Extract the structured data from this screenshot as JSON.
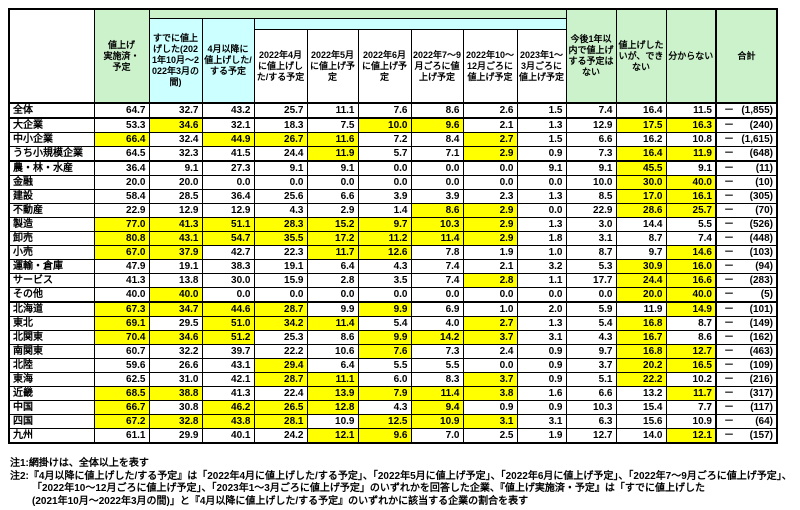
{
  "colors": {
    "green": "#CCF2CC",
    "cyan": "#CCFFFF",
    "yellow": "#FFFF00",
    "grid": "#000000"
  },
  "table": {
    "total_dash": "－",
    "col_headers": [
      {
        "label": "値上げ\n実施済・予定"
      },
      {
        "label": "すでに値上げした(2021年10月～2022年3月の間)"
      },
      {
        "label": "4月以降に値上げした/する予定"
      },
      {
        "label": "2022年4月に値上げした/する予定"
      },
      {
        "label": "2022年5月に値上げ予定"
      },
      {
        "label": "2022年6月に値上げ予定"
      },
      {
        "label": "2022年7～9月ごろに値上げ予定"
      },
      {
        "label": "2022年10～12月ごろに値上げ予定"
      },
      {
        "label": "2023年1～3月ごろに値上げ予定"
      },
      {
        "label": "今後1年以内で値上げする予定はない"
      },
      {
        "label": "値上げしたいが、できない"
      },
      {
        "label": "分からない"
      },
      {
        "label": "合計"
      }
    ],
    "rows": [
      {
        "label": "全体",
        "values": [
          "64.7",
          "32.7",
          "43.2",
          "25.7",
          "11.1",
          "7.6",
          "8.6",
          "2.6",
          "1.5",
          "7.4",
          "16.4",
          "11.5"
        ],
        "highlight": [],
        "total": "(1,855)"
      },
      {
        "label": "大企業",
        "values": [
          "53.3",
          "34.6",
          "32.1",
          "18.3",
          "7.5",
          "10.0",
          "9.6",
          "2.1",
          "1.3",
          "12.9",
          "17.5",
          "16.3"
        ],
        "highlight": [
          1,
          5,
          6,
          10,
          11
        ],
        "total": "(240)",
        "group_start": true
      },
      {
        "label": "中小企業",
        "values": [
          "66.4",
          "32.4",
          "44.9",
          "26.7",
          "11.6",
          "7.2",
          "8.4",
          "2.7",
          "1.5",
          "6.6",
          "16.2",
          "10.8"
        ],
        "highlight": [
          0,
          2,
          3,
          4,
          7
        ],
        "total": "(1,615)"
      },
      {
        "label": "うち小規模企業",
        "values": [
          "64.5",
          "32.3",
          "41.5",
          "24.4",
          "11.9",
          "5.7",
          "7.1",
          "2.9",
          "0.9",
          "7.3",
          "16.4",
          "11.9"
        ],
        "highlight": [
          4,
          7,
          10,
          11
        ],
        "total": "(648)"
      },
      {
        "label": "農・林・水産",
        "values": [
          "36.4",
          "9.1",
          "27.3",
          "9.1",
          "9.1",
          "0.0",
          "0.0",
          "0.0",
          "9.1",
          "9.1",
          "45.5",
          "9.1"
        ],
        "highlight": [
          10
        ],
        "total": "(11)",
        "group_start": true
      },
      {
        "label": "金融",
        "values": [
          "20.0",
          "20.0",
          "0.0",
          "0.0",
          "0.0",
          "0.0",
          "0.0",
          "0.0",
          "0.0",
          "10.0",
          "30.0",
          "40.0"
        ],
        "highlight": [
          10,
          11
        ],
        "total": "(10)"
      },
      {
        "label": "建設",
        "values": [
          "58.4",
          "28.5",
          "36.4",
          "25.6",
          "6.6",
          "3.9",
          "3.9",
          "2.3",
          "1.3",
          "8.5",
          "17.0",
          "16.1"
        ],
        "highlight": [
          10,
          11
        ],
        "total": "(305)"
      },
      {
        "label": "不動産",
        "values": [
          "22.9",
          "12.9",
          "12.9",
          "4.3",
          "2.9",
          "1.4",
          "8.6",
          "2.9",
          "0.0",
          "22.9",
          "28.6",
          "25.7"
        ],
        "highlight": [
          6,
          7,
          10,
          11
        ],
        "total": "(70)"
      },
      {
        "label": "製造",
        "values": [
          "77.0",
          "41.3",
          "51.1",
          "28.3",
          "15.2",
          "9.7",
          "10.3",
          "2.9",
          "1.3",
          "3.0",
          "14.4",
          "5.5"
        ],
        "highlight": [
          0,
          1,
          2,
          3,
          4,
          5,
          6,
          7
        ],
        "total": "(526)"
      },
      {
        "label": "卸売",
        "values": [
          "80.8",
          "43.1",
          "54.7",
          "35.5",
          "17.2",
          "11.2",
          "11.4",
          "2.9",
          "1.8",
          "3.1",
          "8.7",
          "7.4"
        ],
        "highlight": [
          0,
          1,
          2,
          3,
          4,
          5,
          6,
          7
        ],
        "total": "(448)"
      },
      {
        "label": "小売",
        "values": [
          "67.0",
          "37.9",
          "42.7",
          "22.3",
          "11.7",
          "12.6",
          "7.8",
          "1.9",
          "1.0",
          "8.7",
          "9.7",
          "14.6"
        ],
        "highlight": [
          0,
          1,
          4,
          5,
          11
        ],
        "total": "(103)"
      },
      {
        "label": "運輸・倉庫",
        "values": [
          "47.9",
          "19.1",
          "38.3",
          "19.1",
          "6.4",
          "4.3",
          "7.4",
          "2.1",
          "3.2",
          "5.3",
          "30.9",
          "16.0"
        ],
        "highlight": [
          10,
          11
        ],
        "total": "(94)"
      },
      {
        "label": "サービス",
        "values": [
          "41.3",
          "13.8",
          "30.0",
          "15.9",
          "2.8",
          "3.5",
          "7.4",
          "2.8",
          "1.1",
          "17.7",
          "24.4",
          "16.6"
        ],
        "highlight": [
          7,
          10,
          11
        ],
        "total": "(283)"
      },
      {
        "label": "その他",
        "values": [
          "40.0",
          "40.0",
          "0.0",
          "0.0",
          "0.0",
          "0.0",
          "0.0",
          "0.0",
          "0.0",
          "0.0",
          "20.0",
          "40.0"
        ],
        "highlight": [
          1,
          10,
          11
        ],
        "total": "(5)"
      },
      {
        "label": "北海道",
        "values": [
          "67.3",
          "34.7",
          "44.6",
          "28.7",
          "9.9",
          "9.9",
          "6.9",
          "1.0",
          "2.0",
          "5.9",
          "11.9",
          "14.9"
        ],
        "highlight": [
          0,
          1,
          2,
          3,
          5,
          11
        ],
        "total": "(101)",
        "group_start": true
      },
      {
        "label": "東北",
        "values": [
          "69.1",
          "29.5",
          "51.0",
          "34.2",
          "11.4",
          "5.4",
          "4.0",
          "2.7",
          "1.3",
          "5.4",
          "16.8",
          "8.7"
        ],
        "highlight": [
          0,
          2,
          3,
          4,
          7,
          10
        ],
        "total": "(149)"
      },
      {
        "label": "北関東",
        "values": [
          "70.4",
          "34.6",
          "51.2",
          "25.3",
          "8.6",
          "9.9",
          "14.2",
          "3.7",
          "3.1",
          "4.3",
          "16.7",
          "8.6"
        ],
        "highlight": [
          0,
          1,
          2,
          5,
          6,
          7,
          10
        ],
        "total": "(162)"
      },
      {
        "label": "南関東",
        "values": [
          "60.7",
          "32.2",
          "39.7",
          "22.2",
          "10.6",
          "7.6",
          "7.3",
          "2.4",
          "0.9",
          "9.7",
          "16.8",
          "12.7"
        ],
        "highlight": [
          5,
          10,
          11
        ],
        "total": "(463)"
      },
      {
        "label": "北陸",
        "values": [
          "59.6",
          "26.6",
          "43.1",
          "29.4",
          "6.4",
          "5.5",
          "5.5",
          "0.0",
          "0.9",
          "3.7",
          "20.2",
          "16.5"
        ],
        "highlight": [
          3,
          10,
          11
        ],
        "total": "(109)"
      },
      {
        "label": "東海",
        "values": [
          "62.5",
          "31.0",
          "42.1",
          "28.7",
          "11.1",
          "6.0",
          "8.3",
          "3.7",
          "0.9",
          "5.1",
          "22.2",
          "10.2"
        ],
        "highlight": [
          3,
          4,
          7,
          10
        ],
        "total": "(216)"
      },
      {
        "label": "近畿",
        "values": [
          "68.5",
          "38.8",
          "41.3",
          "22.4",
          "13.9",
          "7.9",
          "11.4",
          "3.8",
          "1.6",
          "6.6",
          "13.2",
          "11.7"
        ],
        "highlight": [
          0,
          1,
          4,
          5,
          6,
          7,
          11
        ],
        "total": "(317)"
      },
      {
        "label": "中国",
        "values": [
          "66.7",
          "30.8",
          "46.2",
          "26.5",
          "12.8",
          "4.3",
          "9.4",
          "0.9",
          "0.9",
          "10.3",
          "15.4",
          "7.7"
        ],
        "highlight": [
          0,
          2,
          3,
          4,
          6
        ],
        "total": "(117)"
      },
      {
        "label": "四国",
        "values": [
          "67.2",
          "32.8",
          "43.8",
          "28.1",
          "10.9",
          "12.5",
          "10.9",
          "3.1",
          "3.1",
          "6.3",
          "15.6",
          "10.9"
        ],
        "highlight": [
          0,
          1,
          2,
          3,
          5,
          6,
          7
        ],
        "total": "(64)"
      },
      {
        "label": "九州",
        "values": [
          "61.1",
          "29.9",
          "40.1",
          "24.2",
          "12.1",
          "9.6",
          "7.0",
          "2.5",
          "1.9",
          "12.7",
          "14.0",
          "12.1"
        ],
        "highlight": [
          4,
          5,
          11
        ],
        "total": "(157)"
      }
    ]
  },
  "notes": [
    {
      "text": "注1:網掛けは、全体以上を表す",
      "indent": false
    },
    {
      "text": "注2:『4月以降に値上げした/する予定』は「2022年4月に値上げした/する予定」、「2022年5月に値上げ予定」、「2022年6月に値上げ予定」、「2022年7～9月ごろに値上げ予定」、",
      "indent": false
    },
    {
      "text": "「2022年10～12月ごろに値上げ予定」、「2023年1～3月ごろに値上げ予定」のいずれかを回答した企業、『値上げ実施済・予定』は「すでに値上げした",
      "indent": true
    },
    {
      "text": "(2021年10月～2022年3月の間)」と『4月以降に値上げした/する予定』のいずれかに該当する企業の割合を表す",
      "indent": true
    }
  ]
}
